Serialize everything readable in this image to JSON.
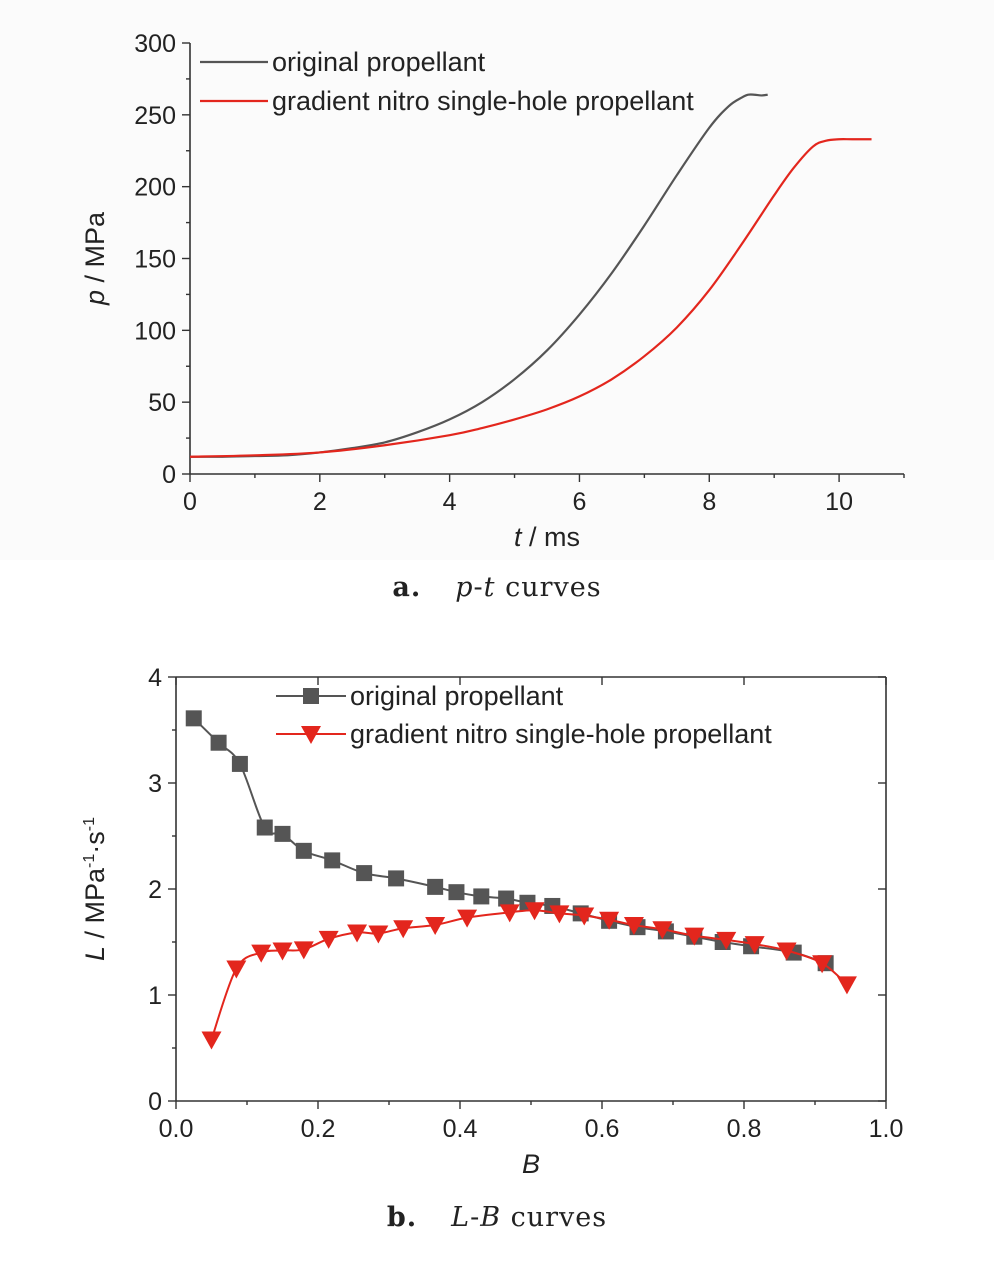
{
  "chart_data": [
    {
      "type": "line",
      "caption": {
        "letter": "a.",
        "x_sym": "p",
        "sep": "-",
        "y_sym": "t",
        "word": "curves"
      },
      "xlabel": {
        "sym": "t",
        "unit": " / ms"
      },
      "ylabel": {
        "sym": "p",
        "unit": " / MPa"
      },
      "xlim": [
        0,
        11
      ],
      "ylim": [
        0,
        300
      ],
      "xticks": [
        0,
        2,
        4,
        6,
        8,
        10
      ],
      "yticks": [
        0,
        50,
        100,
        150,
        200,
        250,
        300
      ],
      "legend_position": "top-left",
      "series": [
        {
          "name": "original propellant",
          "color": "#555555",
          "x": [
            0,
            0.5,
            1.0,
            1.5,
            2.0,
            2.5,
            3.0,
            3.5,
            4.0,
            4.5,
            5.0,
            5.5,
            6.0,
            6.5,
            7.0,
            7.5,
            8.0,
            8.3,
            8.5,
            8.6,
            8.7,
            8.8,
            8.9
          ],
          "y": [
            12,
            12,
            12.5,
            13,
            15,
            18,
            22,
            29,
            38,
            50,
            66,
            86,
            111,
            140,
            173,
            208,
            241,
            256,
            262,
            264,
            264,
            263.5,
            264
          ]
        },
        {
          "name": "gradient nitro single-hole propellant",
          "color": "#e3261d",
          "x": [
            0,
            1,
            2,
            3,
            4,
            4.5,
            5,
            5.5,
            6,
            6.5,
            7,
            7.5,
            8,
            8.5,
            9,
            9.3,
            9.6,
            9.8,
            10.0,
            10.2,
            10.5
          ],
          "y": [
            12,
            13,
            15,
            20,
            27,
            32,
            38,
            45,
            54,
            66,
            82,
            102,
            128,
            160,
            194,
            213,
            228,
            232,
            233,
            233,
            233
          ]
        }
      ]
    },
    {
      "type": "line",
      "caption": {
        "letter": "b.",
        "x_sym": "L",
        "sep": "-",
        "y_sym": "B",
        "word": "curves"
      },
      "xlabel": {
        "sym": "B",
        "unit": ""
      },
      "ylabel": {
        "sym": "L",
        "unit": " / MPa",
        "sup1": "-1",
        "mid": "·s",
        "sup2": "-1"
      },
      "xlim": [
        0.0,
        1.0
      ],
      "ylim": [
        0,
        4
      ],
      "xticks": [
        "0.0",
        "0.2",
        "0.4",
        "0.6",
        "0.8",
        "1.0"
      ],
      "yticks": [
        "0",
        "1",
        "2",
        "3",
        "4"
      ],
      "legend_position": "top-center",
      "series": [
        {
          "name": "original propellant",
          "color": "#555555",
          "marker": "square",
          "x": [
            0.025,
            0.06,
            0.09,
            0.125,
            0.15,
            0.18,
            0.22,
            0.265,
            0.31,
            0.365,
            0.395,
            0.43,
            0.465,
            0.495,
            0.53,
            0.57,
            0.61,
            0.65,
            0.69,
            0.73,
            0.77,
            0.81,
            0.87,
            0.915
          ],
          "y": [
            3.61,
            3.38,
            3.18,
            2.58,
            2.52,
            2.36,
            2.27,
            2.15,
            2.1,
            2.02,
            1.97,
            1.93,
            1.91,
            1.87,
            1.84,
            1.77,
            1.7,
            1.64,
            1.6,
            1.55,
            1.5,
            1.46,
            1.4,
            1.3
          ]
        },
        {
          "name": "gradient nitro single-hole propellant",
          "color": "#e3261d",
          "marker": "triangle-down",
          "x": [
            0.05,
            0.085,
            0.12,
            0.15,
            0.18,
            0.215,
            0.255,
            0.285,
            0.32,
            0.365,
            0.41,
            0.47,
            0.505,
            0.54,
            0.575,
            0.61,
            0.645,
            0.685,
            0.73,
            0.775,
            0.815,
            0.86,
            0.91,
            0.945
          ],
          "y": [
            0.58,
            1.25,
            1.4,
            1.42,
            1.43,
            1.53,
            1.59,
            1.58,
            1.63,
            1.66,
            1.73,
            1.78,
            1.8,
            1.77,
            1.75,
            1.71,
            1.66,
            1.62,
            1.56,
            1.52,
            1.48,
            1.42,
            1.3,
            1.1
          ]
        }
      ]
    }
  ]
}
